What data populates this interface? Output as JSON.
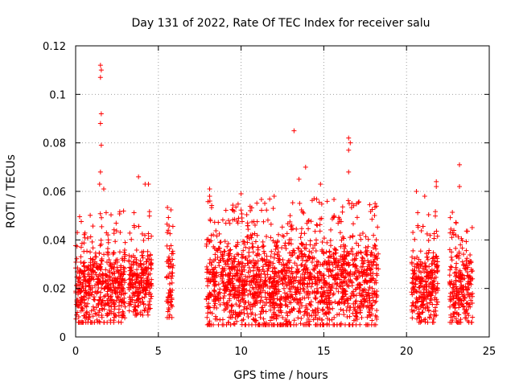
{
  "chart_data": {
    "type": "scatter",
    "title": "Day 131 of 2022, Rate Of TEC Index for receiver salu",
    "xlabel": "GPS time / hours",
    "ylabel": "ROTI / TECUs",
    "xlim": [
      0,
      25
    ],
    "ylim": [
      0,
      0.12
    ],
    "x_ticks": [
      0,
      5,
      10,
      15,
      20,
      25
    ],
    "x_tick_labels": [
      "0",
      "5",
      "10",
      "15",
      "20",
      "25"
    ],
    "y_ticks": [
      0,
      0.02,
      0.04,
      0.06,
      0.08,
      0.1,
      0.12
    ],
    "y_tick_labels": [
      "0",
      "0.02",
      "0.04",
      "0.06",
      "0.08",
      "0.1",
      "0.12"
    ],
    "grid": true,
    "marker": "+",
    "marker_color": "#ff0000",
    "series": [
      {
        "name": "ROTI",
        "segments": [
          {
            "x_range": [
              0.0,
              3.0
            ],
            "typical_range": [
              0.007,
              0.04
            ]
          },
          {
            "x_range": [
              3.2,
              4.6
            ],
            "typical_range": [
              0.01,
              0.04
            ]
          },
          {
            "x_range": [
              5.5,
              5.9
            ],
            "typical_range": [
              0.009,
              0.042
            ]
          },
          {
            "x_range": [
              7.9,
              18.3
            ],
            "typical_range": [
              0.006,
              0.045
            ]
          },
          {
            "x_range": [
              20.3,
              21.9
            ],
            "typical_range": [
              0.007,
              0.04
            ]
          },
          {
            "x_range": [
              22.6,
              24.0
            ],
            "typical_range": [
              0.007,
              0.04
            ]
          }
        ],
        "notable_points": [
          {
            "x": 1.5,
            "y": 0.112
          },
          {
            "x": 1.55,
            "y": 0.11
          },
          {
            "x": 1.5,
            "y": 0.107
          },
          {
            "x": 1.55,
            "y": 0.092
          },
          {
            "x": 1.5,
            "y": 0.088
          },
          {
            "x": 1.55,
            "y": 0.079
          },
          {
            "x": 1.5,
            "y": 0.068
          },
          {
            "x": 1.45,
            "y": 0.063
          },
          {
            "x": 1.7,
            "y": 0.061
          },
          {
            "x": 3.8,
            "y": 0.066
          },
          {
            "x": 4.2,
            "y": 0.063
          },
          {
            "x": 4.4,
            "y": 0.063
          },
          {
            "x": 5.6,
            "y": 0.044
          },
          {
            "x": 8.1,
            "y": 0.061
          },
          {
            "x": 8.1,
            "y": 0.058
          },
          {
            "x": 10.0,
            "y": 0.059
          },
          {
            "x": 12.0,
            "y": 0.058
          },
          {
            "x": 13.2,
            "y": 0.085
          },
          {
            "x": 13.9,
            "y": 0.07
          },
          {
            "x": 13.5,
            "y": 0.065
          },
          {
            "x": 14.8,
            "y": 0.063
          },
          {
            "x": 16.5,
            "y": 0.082
          },
          {
            "x": 16.6,
            "y": 0.08
          },
          {
            "x": 16.5,
            "y": 0.077
          },
          {
            "x": 16.5,
            "y": 0.068
          },
          {
            "x": 18.1,
            "y": 0.055
          },
          {
            "x": 20.6,
            "y": 0.06
          },
          {
            "x": 21.1,
            "y": 0.058
          },
          {
            "x": 21.8,
            "y": 0.064
          },
          {
            "x": 21.8,
            "y": 0.062
          },
          {
            "x": 23.2,
            "y": 0.071
          },
          {
            "x": 23.2,
            "y": 0.062
          },
          {
            "x": 23.0,
            "y": 0.047
          }
        ]
      }
    ]
  }
}
